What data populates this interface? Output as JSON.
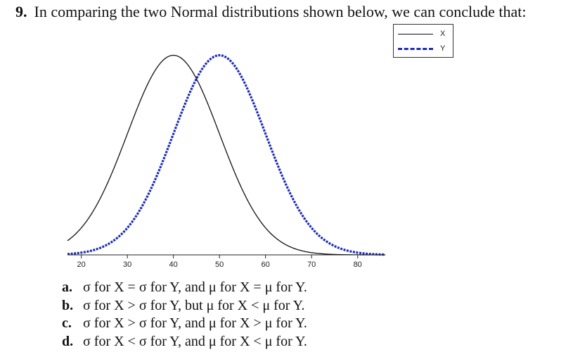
{
  "question": {
    "number": "9.",
    "text": "In comparing the two Normal distributions shown below, we can conclude that:"
  },
  "chart_data": {
    "type": "line",
    "xlim": [
      17,
      86
    ],
    "ylim": [
      0,
      0.0425
    ],
    "x_ticks": [
      20,
      30,
      40,
      50,
      60,
      70,
      80
    ],
    "grid": false,
    "legend_position": "top-right",
    "series": [
      {
        "name": "X",
        "distribution": "normal",
        "mean": 40,
        "sd": 10,
        "style": "solid",
        "color": "#111111"
      },
      {
        "name": "Y",
        "distribution": "normal",
        "mean": 50,
        "sd": 10,
        "style": "dashed",
        "color": "#1c2bb8"
      }
    ]
  },
  "choices": [
    {
      "letter": "a.",
      "text": "σ for X = σ for Y, and μ for X = μ for Y."
    },
    {
      "letter": "b.",
      "text": "σ for X > σ for Y, but μ for X < μ for Y."
    },
    {
      "letter": "c.",
      "text": "σ for X > σ for Y, and μ for X > μ for Y."
    },
    {
      "letter": "d.",
      "text": "σ for X < σ for Y, and μ for X < μ for Y."
    }
  ]
}
